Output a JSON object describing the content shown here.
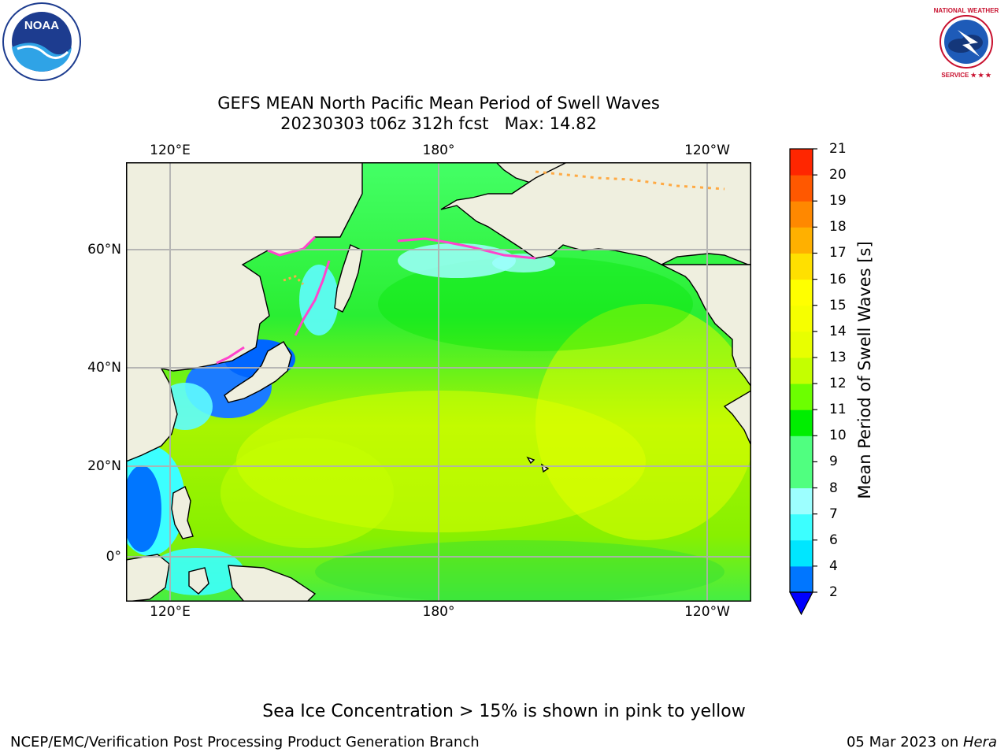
{
  "title": {
    "line1": "GEFS MEAN North Pacific Mean Period of Swell Waves",
    "line2": "20230303 t06z 312h fcst   Max: 14.82"
  },
  "map": {
    "lon_labels": [
      "120°E",
      "180°",
      "120°W"
    ],
    "lat_labels": [
      "60°N",
      "40°N",
      "20°N",
      "0°"
    ],
    "land_color": "#efefdf",
    "grid": true
  },
  "colorbar": {
    "label": "Mean Period of Swell Waves [s]",
    "ticks": [
      "2",
      "4",
      "6",
      "7",
      "8",
      "9",
      "10",
      "11",
      "12",
      "13",
      "14",
      "15",
      "16",
      "17",
      "18",
      "19",
      "20",
      "21"
    ],
    "colors": [
      "#0076ff",
      "#00e6ff",
      "#3cffff",
      "#9dffff",
      "#50ff80",
      "#50ff80",
      "#00ee00",
      "#6cff00",
      "#c4ff00",
      "#e8ff00",
      "#f6ff00",
      "#ffff00",
      "#ffe000",
      "#ffb000",
      "#ff8800",
      "#ff5800",
      "#ff2600",
      "#ff0000"
    ],
    "extend_color": "#0000ff"
  },
  "note": "Sea Ice Concentration > 15% is shown in pink to yellow",
  "footer": {
    "left": "NCEP/EMC/Verification Post Processing Product Generation Branch",
    "date": "05 Mar 2023 on ",
    "machine": "Hera"
  },
  "logos": {
    "noaa": "NOAA",
    "nws": "NATIONAL WEATHER SERVICE"
  }
}
